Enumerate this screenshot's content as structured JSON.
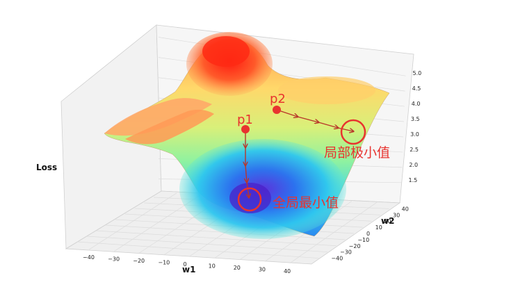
{
  "chart_data": {
    "type": "surface-3d",
    "xlabel": "w1",
    "ylabel": "w2",
    "zlabel": "Loss",
    "x_ticks": [
      "−40",
      "−30",
      "−20",
      "−10",
      "0",
      "10",
      "20",
      "30",
      "40"
    ],
    "y_ticks": [
      "−40",
      "−30",
      "−20",
      "−10",
      "0",
      "10",
      "20",
      "30",
      "40"
    ],
    "z_ticks": [
      "1.5",
      "2.0",
      "2.5",
      "3.0",
      "3.5",
      "4.0",
      "4.5",
      "5.0"
    ],
    "xlim": [
      -45,
      45
    ],
    "ylim": [
      -45,
      45
    ],
    "zlim": [
      1.2,
      5.3
    ],
    "colormap": "rainbow",
    "grid": true,
    "annotations": [
      {
        "label": "p1",
        "kind": "start-point"
      },
      {
        "label": "p2",
        "kind": "start-point"
      },
      {
        "label": "全局最小值",
        "kind": "minimum"
      },
      {
        "label": "局部极小值",
        "kind": "minimum"
      }
    ]
  },
  "colors": {
    "annotation": "#e8332f",
    "path": "#b8362a"
  }
}
